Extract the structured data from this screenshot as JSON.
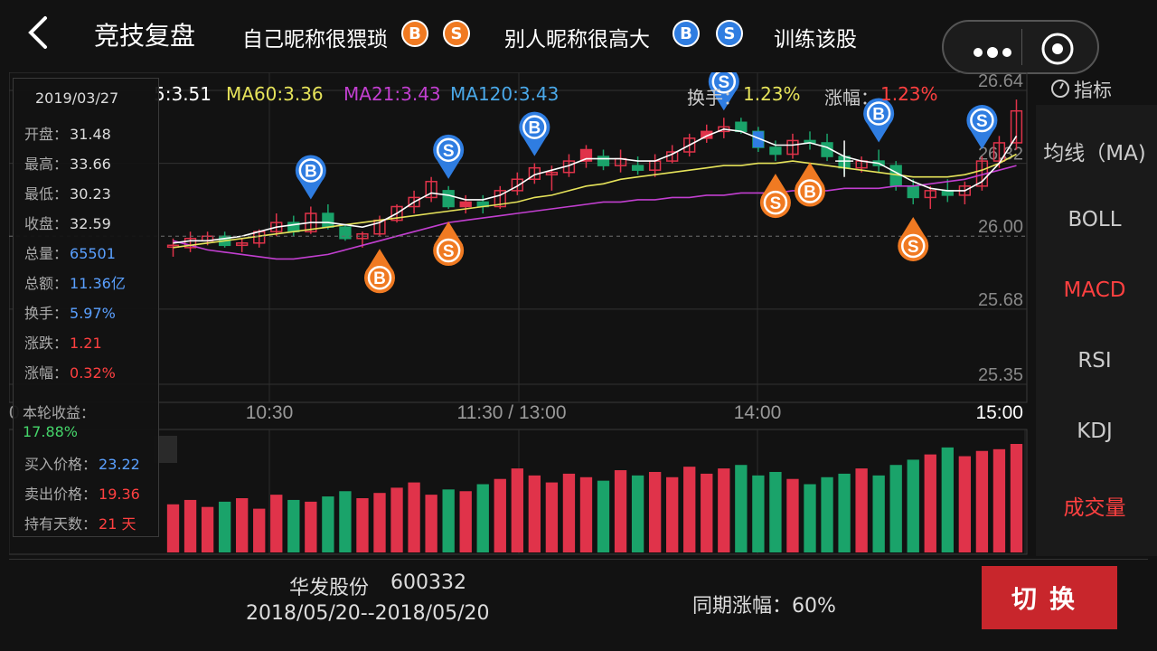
{
  "header": {
    "title": "竞技复盘",
    "player_self": "自己昵称很猥琐",
    "player_other": "别人昵称很高大",
    "train": "训练该股",
    "buy_letter": "B",
    "sell_letter": "S"
  },
  "legend": {
    "ma5": "5:3.51",
    "ma60": "MA60:3.36",
    "ma21": "MA21:3.43",
    "ma120": "MA120:3.43",
    "turnover_label": "换手：",
    "turnover_value": "1.23%",
    "change_label": "涨幅：",
    "change_value": "1.23%"
  },
  "axes": {
    "y_ticks": [
      "26.64",
      "26.32",
      "26.00",
      "25.68",
      "25.35"
    ],
    "x_ticks": [
      "0",
      "10:30",
      "11:30 / 13:00",
      "14:00",
      "15:00"
    ]
  },
  "indicators": {
    "label": "指标",
    "items": [
      "均线（MA)",
      "BOLL",
      "MACD",
      "RSI",
      "KDJ",
      "成交量"
    ],
    "active": [
      "MACD",
      "成交量"
    ]
  },
  "info": {
    "date": "2019/03/27",
    "open_label": "开盘：",
    "open": "31.48",
    "high_label": "最高：",
    "high": "33.66",
    "low_label": "最低：",
    "low": "30.23",
    "close_label": "收盘：",
    "close": "32.59",
    "vol_label": "总量：",
    "vol": "65501",
    "amount_label": "总额：",
    "amount": "11.36亿",
    "turnover_label": "换手：",
    "turnover": "5.97%",
    "chg_label": "涨跌：",
    "chg": "1.21",
    "pct_label": "涨幅：",
    "pct": "0.32%",
    "profit_label": "本轮收益：",
    "profit": "17.88%",
    "buy_label": "买入价格：",
    "buy": "23.22",
    "sell_label": "卖出价格：",
    "sell": "19.36",
    "days_label": "持有天数：",
    "days": "21 天"
  },
  "bottom": {
    "stock_name": "华发股份",
    "stock_code": "600332",
    "range": "2018/05/20--2018/05/20",
    "period_change": "同期涨幅：60%",
    "switch_label": "切换"
  },
  "colors": {
    "up": "#e0334a",
    "down": "#1aa36a",
    "buy_self": "#f07a22",
    "other": "#2f7de1",
    "ma5": "#ffffff",
    "ma60": "#e6e35a",
    "ma21": "#c23fd0",
    "ma120": "#4aa8e8"
  },
  "chart_data": {
    "type": "candlestick",
    "candles": [
      [
        25.96,
        25.99,
        25.91,
        25.96
      ],
      [
        25.95,
        26.02,
        25.93,
        25.99
      ],
      [
        25.98,
        26.02,
        25.96,
        26.0
      ],
      [
        26.0,
        26.02,
        25.95,
        25.96
      ],
      [
        25.96,
        25.99,
        25.93,
        25.97
      ],
      [
        25.97,
        26.03,
        25.95,
        26.02
      ],
      [
        26.02,
        26.1,
        26.0,
        26.06
      ],
      [
        26.06,
        26.09,
        26.0,
        26.02
      ],
      [
        26.02,
        26.13,
        26.01,
        26.1
      ],
      [
        26.1,
        26.14,
        26.03,
        26.04
      ],
      [
        26.04,
        26.05,
        25.98,
        25.99
      ],
      [
        25.99,
        26.02,
        25.95,
        26.01
      ],
      [
        26.01,
        26.09,
        26.0,
        26.07
      ],
      [
        26.07,
        26.14,
        26.06,
        26.13
      ],
      [
        26.13,
        26.2,
        26.1,
        26.17
      ],
      [
        26.17,
        26.26,
        26.15,
        26.24
      ],
      [
        26.2,
        26.22,
        26.12,
        26.13
      ],
      [
        26.13,
        26.18,
        26.1,
        26.15
      ],
      [
        26.15,
        26.18,
        26.1,
        26.13
      ],
      [
        26.13,
        26.22,
        26.12,
        26.2
      ],
      [
        26.2,
        26.28,
        26.18,
        26.25
      ],
      [
        26.25,
        26.32,
        26.23,
        26.3
      ],
      [
        26.27,
        26.31,
        26.2,
        26.28
      ],
      [
        26.28,
        26.36,
        26.26,
        26.33
      ],
      [
        26.33,
        26.4,
        26.3,
        26.38
      ],
      [
        26.35,
        26.38,
        26.29,
        26.31
      ],
      [
        26.31,
        26.38,
        26.28,
        26.34
      ],
      [
        26.31,
        26.35,
        26.27,
        26.29
      ],
      [
        26.29,
        26.36,
        26.26,
        26.33
      ],
      [
        26.33,
        26.4,
        26.32,
        26.37
      ],
      [
        26.37,
        26.45,
        26.35,
        26.43
      ],
      [
        26.43,
        26.49,
        26.41,
        26.46
      ],
      [
        26.46,
        26.52,
        26.43,
        26.48
      ],
      [
        26.5,
        26.52,
        26.45,
        26.46
      ],
      [
        26.46,
        26.48,
        26.37,
        26.39
      ],
      [
        26.39,
        26.42,
        26.33,
        26.36
      ],
      [
        26.36,
        26.45,
        26.34,
        26.42
      ],
      [
        26.42,
        26.46,
        26.38,
        26.41
      ],
      [
        26.41,
        26.45,
        26.33,
        26.35
      ],
      [
        26.35,
        26.38,
        26.27,
        26.3
      ],
      [
        26.3,
        26.35,
        26.28,
        26.33
      ],
      [
        26.33,
        26.38,
        26.28,
        26.31
      ],
      [
        26.31,
        26.33,
        26.2,
        26.22
      ],
      [
        26.22,
        26.25,
        26.14,
        26.17
      ],
      [
        26.17,
        26.22,
        26.12,
        26.2
      ],
      [
        26.2,
        26.25,
        26.15,
        26.18
      ],
      [
        26.18,
        26.24,
        26.14,
        26.22
      ],
      [
        26.22,
        26.35,
        26.2,
        26.33
      ],
      [
        26.33,
        26.44,
        26.3,
        26.41
      ],
      [
        26.41,
        26.6,
        26.38,
        26.55
      ]
    ],
    "volume": [
      55,
      60,
      52,
      58,
      62,
      50,
      66,
      60,
      58,
      64,
      70,
      62,
      68,
      74,
      80,
      66,
      72,
      70,
      78,
      84,
      96,
      88,
      80,
      90,
      86,
      82,
      94,
      88,
      92,
      86,
      98,
      90,
      96,
      100,
      88,
      92,
      84,
      78,
      86,
      90,
      96,
      88,
      100,
      106,
      112,
      120,
      110,
      116,
      118,
      124
    ],
    "ma5_series": [
      25.97,
      25.98,
      25.98,
      25.99,
      26.0,
      26.02,
      26.04,
      26.05,
      26.06,
      26.06,
      26.05,
      26.04,
      26.06,
      26.1,
      26.15,
      26.19,
      26.18,
      26.16,
      26.16,
      26.18,
      26.22,
      26.27,
      26.29,
      26.31,
      26.34,
      26.34,
      26.34,
      26.33,
      26.33,
      26.36,
      26.4,
      26.44,
      26.47,
      26.46,
      26.43,
      26.4,
      26.4,
      26.41,
      26.39,
      26.35,
      26.33,
      26.32,
      26.28,
      26.24,
      26.21,
      26.2,
      26.2,
      26.24,
      26.32,
      26.44
    ],
    "ma60_series": [
      25.95,
      25.96,
      25.97,
      25.98,
      25.99,
      26.0,
      26.01,
      26.02,
      26.03,
      26.04,
      26.05,
      26.06,
      26.07,
      26.08,
      26.09,
      26.1,
      26.11,
      26.12,
      26.13,
      26.14,
      26.15,
      26.17,
      26.18,
      26.2,
      26.22,
      26.23,
      26.25,
      26.26,
      26.27,
      26.28,
      26.29,
      26.3,
      26.31,
      26.31,
      26.32,
      26.32,
      26.33,
      26.32,
      26.31,
      26.3,
      26.29,
      26.28,
      26.27,
      26.26,
      26.26,
      26.26,
      26.27,
      26.29,
      26.32,
      26.36
    ],
    "ma21_series": [
      25.98,
      25.96,
      25.94,
      25.93,
      25.92,
      25.91,
      25.9,
      25.9,
      25.91,
      25.92,
      25.94,
      25.96,
      25.98,
      26.0,
      26.02,
      26.04,
      26.06,
      26.07,
      26.08,
      26.09,
      26.1,
      26.11,
      26.12,
      26.13,
      26.14,
      26.15,
      26.15,
      26.16,
      26.16,
      26.17,
      26.17,
      26.18,
      26.18,
      26.19,
      26.19,
      26.19,
      26.2,
      26.2,
      26.2,
      26.21,
      26.21,
      26.21,
      26.22,
      26.22,
      26.23,
      26.24,
      26.25,
      26.27,
      26.29,
      26.31
    ],
    "ymin": 25.35,
    "ymax": 26.64,
    "markers": [
      {
        "i": 8,
        "type": "B",
        "side": "other",
        "pos": "above"
      },
      {
        "i": 12,
        "type": "B",
        "side": "self",
        "pos": "below"
      },
      {
        "i": 16,
        "type": "S",
        "side": "other",
        "pos": "above"
      },
      {
        "i": 16,
        "type": "S",
        "side": "self",
        "pos": "below"
      },
      {
        "i": 21,
        "type": "B",
        "side": "other",
        "pos": "above"
      },
      {
        "i": 32,
        "type": "S",
        "side": "other",
        "pos": "above"
      },
      {
        "i": 35,
        "type": "S",
        "side": "self",
        "pos": "below"
      },
      {
        "i": 37,
        "type": "B",
        "side": "self",
        "pos": "below"
      },
      {
        "i": 41,
        "type": "B",
        "side": "other",
        "pos": "above"
      },
      {
        "i": 43,
        "type": "S",
        "side": "self",
        "pos": "below"
      },
      {
        "i": 47,
        "type": "S",
        "side": "other",
        "pos": "above"
      }
    ]
  }
}
